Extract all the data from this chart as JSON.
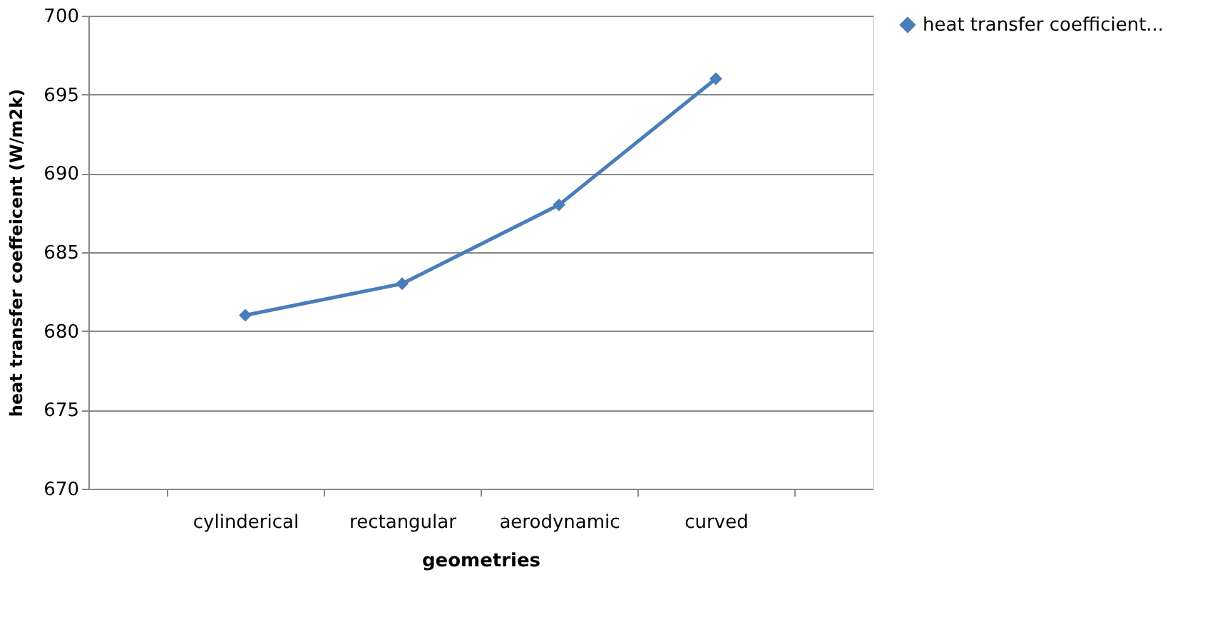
{
  "chart_data": {
    "type": "line",
    "xlabel": "geometries",
    "ylabel": "heat transfer coeffeicent (W/m2k)",
    "categories": [
      "cylinderical",
      "rectangular",
      "aerodynamic",
      "curved"
    ],
    "series": [
      {
        "name": "heat transfer coefficient...",
        "color": "#4a7ebb",
        "values": [
          681,
          683,
          688,
          696
        ]
      }
    ],
    "ylim": [
      670,
      700
    ],
    "yticks": [
      670,
      675,
      680,
      685,
      690,
      695,
      700
    ],
    "grid": "y",
    "legend": "right",
    "marker": "diamond",
    "line_style": "solid"
  }
}
